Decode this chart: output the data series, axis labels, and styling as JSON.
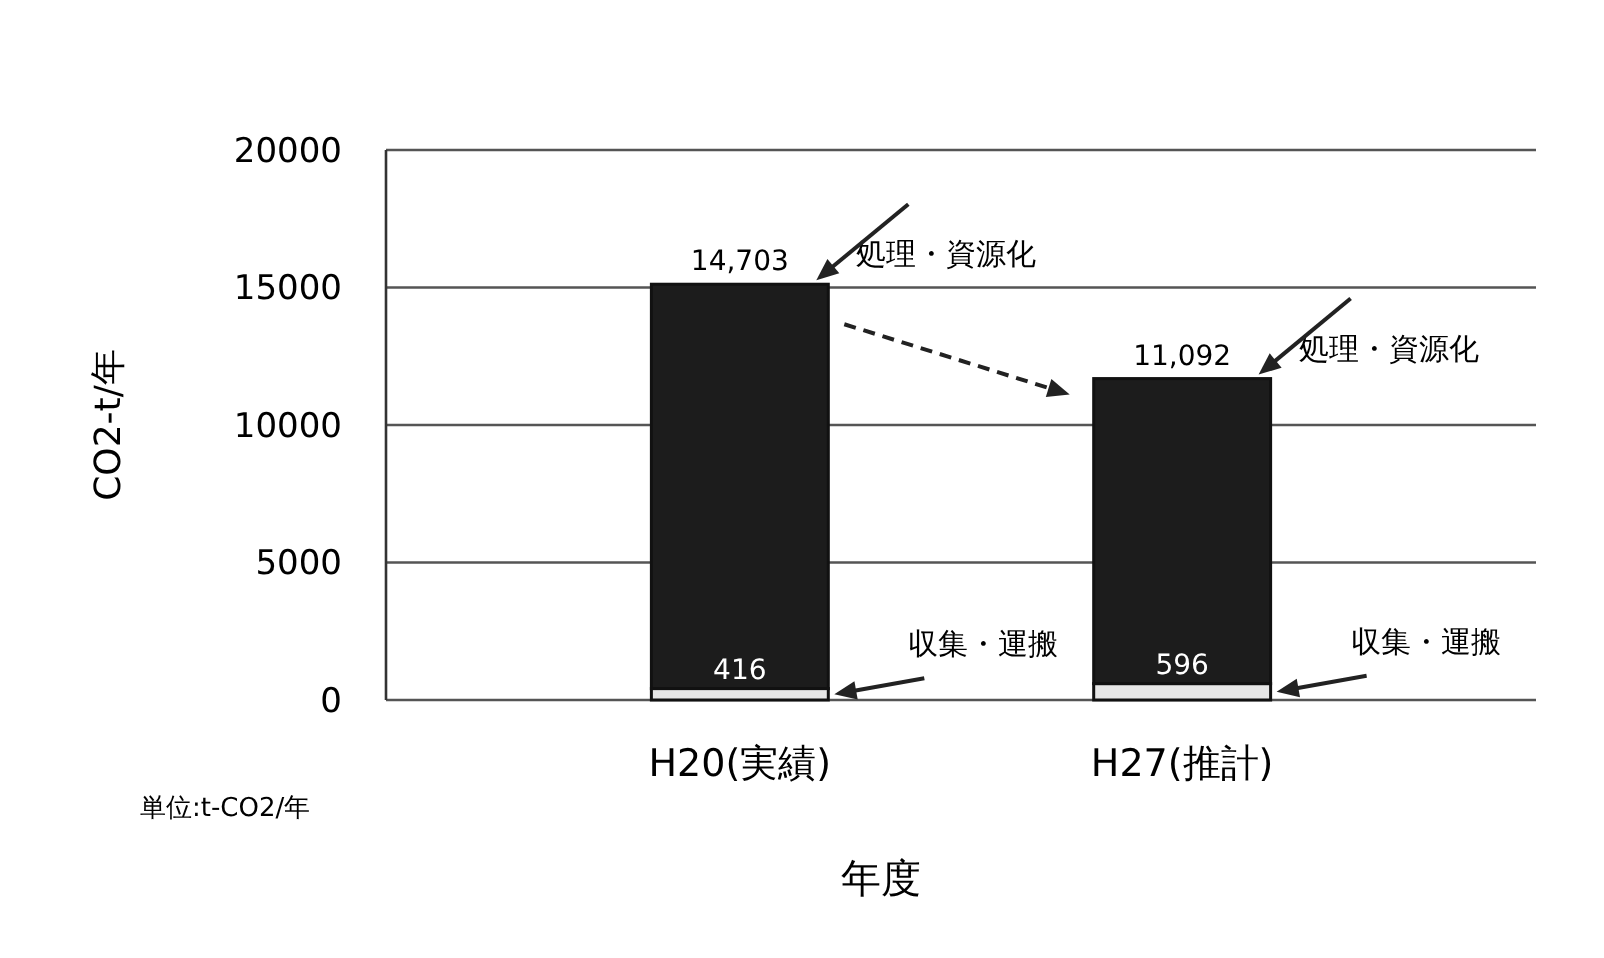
{
  "chart_data": {
    "type": "bar",
    "stacked": true,
    "categories": [
      "H20(実績)",
      "H27(推計)"
    ],
    "series": [
      {
        "name": "収集・運搬",
        "color": "#e6e6e6",
        "values": [
          416,
          596
        ],
        "value_labels": [
          "416",
          "596"
        ]
      },
      {
        "name": "処理・資源化",
        "color": "#1c1c1c",
        "values": [
          14703,
          11092
        ],
        "value_labels": [
          "14,703",
          "11,092"
        ]
      }
    ],
    "ylim": [
      0,
      20000
    ],
    "yticks": [
      0,
      5000,
      10000,
      15000,
      20000
    ],
    "grid": "y",
    "ylabel": "CO2-t/年",
    "xlabel": "年度",
    "annotations": [
      "単位:t-CO2/年"
    ]
  }
}
